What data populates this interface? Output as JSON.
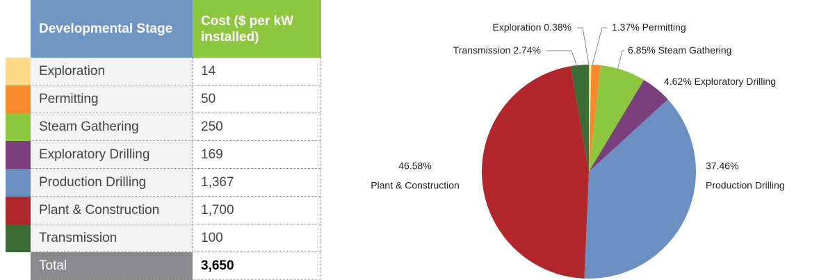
{
  "table": {
    "header": [
      "Developmental Stage",
      "Cost ($ per kW installed)"
    ],
    "rows": [
      [
        "Exploration",
        "14"
      ],
      [
        "Permitting",
        "50"
      ],
      [
        "Steam Gathering",
        "250"
      ],
      [
        "Exploratory Drilling",
        "169"
      ],
      [
        "Production Drilling",
        "1,367"
      ],
      [
        "Plant & Construction",
        "1,700"
      ],
      [
        "Transmission",
        "100"
      ]
    ],
    "total": [
      "Total",
      "3,650"
    ]
  },
  "chart_data": {
    "type": "pie",
    "categories": [
      "Exploration",
      "Permitting",
      "Steam Gathering",
      "Exploratory Drilling",
      "Production Drilling",
      "Plant & Construction",
      "Transmission"
    ],
    "values": [
      0.38,
      1.37,
      6.85,
      4.62,
      37.46,
      46.58,
      2.74
    ],
    "value_labels": [
      "0.38%",
      "1.37%",
      "6.85%",
      "4.62%",
      "37.46%",
      "46.58%",
      "2.74%"
    ],
    "colors": [
      "#fdd98a",
      "#f58a2b",
      "#8dc63f",
      "#7b3f7d",
      "#6b8fc0",
      "#b1262a",
      "#3b6b37"
    ]
  }
}
